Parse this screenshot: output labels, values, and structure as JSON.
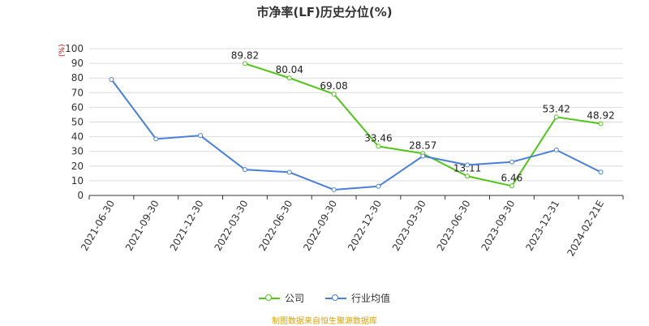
{
  "chart_data": {
    "type": "line",
    "title": "市净率(LF)历史分位(%)",
    "unit_label": "(%)",
    "xlabel": "",
    "ylabel": "",
    "ylim": [
      0,
      100
    ],
    "yticks": [
      0,
      10,
      20,
      30,
      40,
      50,
      60,
      70,
      80,
      90,
      100
    ],
    "grid": true,
    "legend_position": "bottom",
    "categories": [
      "2021-06-30",
      "2021-09-30",
      "2021-12-30",
      "2022-03-30",
      "2022-06-30",
      "2022-09-30",
      "2022-12-30",
      "2023-03-30",
      "2023-06-30",
      "2023-09-30",
      "2023-12-31",
      "2024-02-21E"
    ],
    "series": [
      {
        "name": "公司",
        "color": "#52c41a",
        "values": [
          null,
          null,
          null,
          89.82,
          80.04,
          69.08,
          33.46,
          28.57,
          13.11,
          6.46,
          53.42,
          48.92
        ],
        "labels": [
          "",
          "",
          "",
          "89.82",
          "80.04",
          "69.08",
          "33.46",
          "28.57",
          "13.11",
          "6.46",
          "53.42",
          "48.92"
        ]
      },
      {
        "name": "行业均值",
        "color": "#4a7fd9",
        "values": [
          79.0,
          38.5,
          40.8,
          17.6,
          15.8,
          3.9,
          6.2,
          26.8,
          20.8,
          22.8,
          31.0,
          15.9
        ]
      }
    ],
    "source": "制图数据来自恒生聚源数据库"
  }
}
